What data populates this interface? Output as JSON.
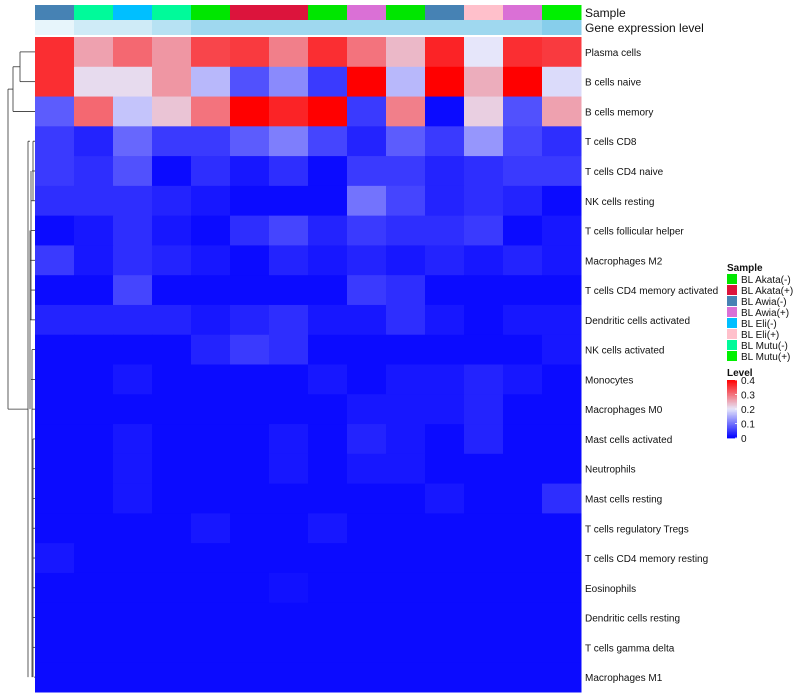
{
  "chart_data": {
    "type": "heatmap",
    "annotation_labels": {
      "sample": "Sample",
      "gene_expression_level": "Gene expression level"
    },
    "columns": [
      {
        "sample": "BL Awia(-)",
        "gene_level": 0.05
      },
      {
        "sample": "BL Mutu(-)",
        "gene_level": 0.1
      },
      {
        "sample": "BL Eli(-)",
        "gene_level": 0.1
      },
      {
        "sample": "BL Mutu(-)",
        "gene_level": 0.15
      },
      {
        "sample": "BL Akata(-)",
        "gene_level": 0.2
      },
      {
        "sample": "BL Akata(+)",
        "gene_level": 0.2
      },
      {
        "sample": "BL Akata(+)",
        "gene_level": 0.2
      },
      {
        "sample": "BL Akata(-)",
        "gene_level": 0.2
      },
      {
        "sample": "BL Awia(+)",
        "gene_level": 0.2
      },
      {
        "sample": "BL Akata(-)",
        "gene_level": 0.2
      },
      {
        "sample": "BL Awia(-)",
        "gene_level": 0.2
      },
      {
        "sample": "BL Eli(+)",
        "gene_level": 0.2
      },
      {
        "sample": "BL Awia(+)",
        "gene_level": 0.2
      },
      {
        "sample": "BL Mutu(+)",
        "gene_level": 0.25
      }
    ],
    "rows": [
      {
        "label": "Plasma cells",
        "values": [
          0.36,
          0.26,
          0.31,
          0.27,
          0.34,
          0.35,
          0.29,
          0.36,
          0.3,
          0.24,
          0.37,
          0.2,
          0.36,
          0.35
        ]
      },
      {
        "label": "B cells naive",
        "values": [
          0.36,
          0.21,
          0.21,
          0.27,
          0.16,
          0.07,
          0.12,
          0.05,
          0.4,
          0.16,
          0.4,
          0.25,
          0.4,
          0.19
        ]
      },
      {
        "label": "B cells memory",
        "values": [
          0.08,
          0.31,
          0.17,
          0.23,
          0.3,
          0.4,
          0.37,
          0.4,
          0.05,
          0.29,
          0.01,
          0.22,
          0.07,
          0.26
        ]
      },
      {
        "label": "T cells CD8",
        "values": [
          0.05,
          0.03,
          0.09,
          0.05,
          0.05,
          0.08,
          0.11,
          0.06,
          0.03,
          0.08,
          0.05,
          0.13,
          0.06,
          0.04
        ]
      },
      {
        "label": "T cells CD4 naive",
        "values": [
          0.05,
          0.04,
          0.07,
          0.01,
          0.04,
          0.02,
          0.04,
          0.01,
          0.05,
          0.05,
          0.03,
          0.04,
          0.05,
          0.05
        ]
      },
      {
        "label": "NK cells resting",
        "values": [
          0.04,
          0.04,
          0.04,
          0.03,
          0.02,
          0.01,
          0.01,
          0.01,
          0.1,
          0.06,
          0.03,
          0.04,
          0.03,
          0.01
        ]
      },
      {
        "label": "T cells follicular helper",
        "values": [
          0.01,
          0.02,
          0.04,
          0.02,
          0.01,
          0.04,
          0.06,
          0.03,
          0.05,
          0.04,
          0.04,
          0.05,
          0.01,
          0.02
        ]
      },
      {
        "label": "Macrophages M2",
        "values": [
          0.05,
          0.02,
          0.04,
          0.03,
          0.02,
          0.01,
          0.03,
          0.02,
          0.03,
          0.02,
          0.03,
          0.02,
          0.03,
          0.02
        ]
      },
      {
        "label": "T cells CD4 memory activated",
        "values": [
          0.01,
          0.01,
          0.06,
          0.01,
          0.01,
          0.01,
          0.01,
          0.01,
          0.05,
          0.04,
          0.01,
          0.01,
          0.01,
          0.01
        ]
      },
      {
        "label": "Dendritic cells activated",
        "values": [
          0.03,
          0.03,
          0.03,
          0.03,
          0.02,
          0.03,
          0.04,
          0.02,
          0.02,
          0.04,
          0.02,
          0.01,
          0.02,
          0.02
        ]
      },
      {
        "label": "NK cells activated",
        "values": [
          0.01,
          0.01,
          0.01,
          0.01,
          0.03,
          0.05,
          0.04,
          0.01,
          0.01,
          0.01,
          0.01,
          0.01,
          0.01,
          0.02
        ]
      },
      {
        "label": "Monocytes",
        "values": [
          0.01,
          0.01,
          0.02,
          0.01,
          0.01,
          0.01,
          0.01,
          0.02,
          0.01,
          0.02,
          0.02,
          0.03,
          0.02,
          0.01
        ]
      },
      {
        "label": "Macrophages M0",
        "values": [
          0.01,
          0.01,
          0.01,
          0.01,
          0.01,
          0.01,
          0.01,
          0.01,
          0.02,
          0.02,
          0.02,
          0.03,
          0.01,
          0.01
        ]
      },
      {
        "label": "Mast cells activated",
        "values": [
          0.01,
          0.01,
          0.02,
          0.01,
          0.01,
          0.01,
          0.02,
          0.01,
          0.03,
          0.02,
          0.01,
          0.03,
          0.01,
          0.01
        ]
      },
      {
        "label": "Neutrophils",
        "values": [
          0.01,
          0.01,
          0.02,
          0.01,
          0.01,
          0.01,
          0.02,
          0.01,
          0.02,
          0.02,
          0.01,
          0.01,
          0.01,
          0.01
        ]
      },
      {
        "label": "Mast cells resting",
        "values": [
          0.01,
          0.01,
          0.02,
          0.01,
          0.01,
          0.01,
          0.01,
          0.01,
          0.01,
          0.01,
          0.02,
          0.01,
          0.01,
          0.04
        ]
      },
      {
        "label": "T cells regulatory  Tregs",
        "values": [
          0.01,
          0.01,
          0.01,
          0.01,
          0.02,
          0.01,
          0.01,
          0.02,
          0.01,
          0.01,
          0.01,
          0.01,
          0.01,
          0.01
        ]
      },
      {
        "label": "T cells CD4 memory resting",
        "values": [
          0.02,
          0.01,
          0.01,
          0.01,
          0.01,
          0.01,
          0.01,
          0.01,
          0.01,
          0.01,
          0.01,
          0.01,
          0.01,
          0.01
        ]
      },
      {
        "label": "Eosinophils",
        "values": [
          0.01,
          0.01,
          0.01,
          0.01,
          0.01,
          0.01,
          0.015,
          0.01,
          0.01,
          0.01,
          0.01,
          0.01,
          0.01,
          0.01
        ]
      },
      {
        "label": "Dendritic cells resting",
        "values": [
          0.01,
          0.01,
          0.01,
          0.01,
          0.01,
          0.01,
          0.01,
          0.01,
          0.01,
          0.01,
          0.01,
          0.01,
          0.01,
          0.01
        ]
      },
      {
        "label": "T cells gamma delta",
        "values": [
          0.01,
          0.01,
          0.01,
          0.01,
          0.01,
          0.01,
          0.01,
          0.01,
          0.01,
          0.01,
          0.01,
          0.01,
          0.01,
          0.01
        ]
      },
      {
        "label": "Macrophages M1",
        "values": [
          0.01,
          0.01,
          0.01,
          0.01,
          0.01,
          0.01,
          0.01,
          0.01,
          0.01,
          0.01,
          0.01,
          0.01,
          0.01,
          0.01
        ]
      }
    ],
    "sample_legend": {
      "title": "Sample",
      "items": [
        {
          "label": "BL Akata(-)",
          "color": "#00E600"
        },
        {
          "label": "BL Akata(+)",
          "color": "#DC143C"
        },
        {
          "label": "BL Awia(-)",
          "color": "#4682B4"
        },
        {
          "label": "BL Awia(+)",
          "color": "#DA70D6"
        },
        {
          "label": "BL Eli(-)",
          "color": "#00BFFF"
        },
        {
          "label": "BL Eli(+)",
          "color": "#FFC0CB"
        },
        {
          "label": "BL Mutu(-)",
          "color": "#00FA9A"
        },
        {
          "label": "BL Mutu(+)",
          "color": "#00F000"
        }
      ]
    },
    "level_legend": {
      "title": "Level",
      "min": 0,
      "max": 0.4,
      "ticks": [
        "0.4",
        "0.3",
        "0.2",
        "0.1",
        "0"
      ]
    },
    "color_scale": {
      "low": "#0000FF",
      "mid": "#E6E6FA",
      "high": "#FF0000",
      "gene_low": "#FFFFFF",
      "gene_high": "#87CEEB"
    },
    "row_dendrogram": true,
    "column_dendrogram": false
  }
}
